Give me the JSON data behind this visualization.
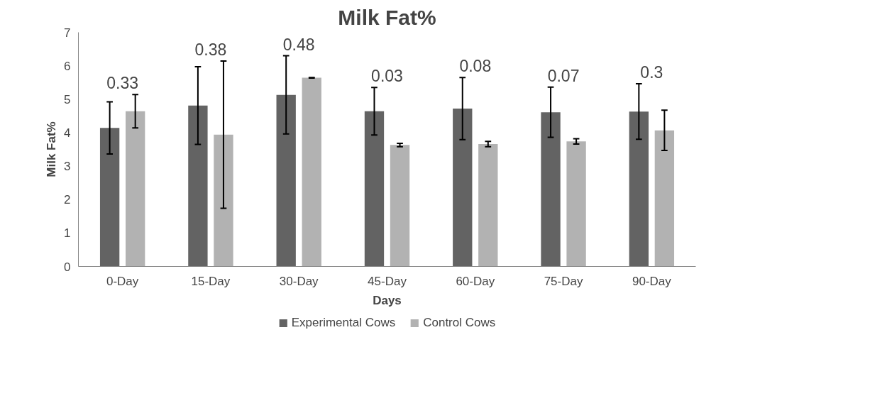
{
  "chart_data": {
    "type": "bar",
    "title": "Milk Fat%",
    "xlabel": "Days",
    "ylabel": "Milk Fat%",
    "categories": [
      "0-Day",
      "15-Day",
      "30-Day",
      "45-Day",
      "60-Day",
      "75-Day",
      "90-Day"
    ],
    "series": [
      {
        "name": "Experimental Cows",
        "color": "#636363",
        "values": [
          4.14,
          4.81,
          5.13,
          4.64,
          4.72,
          4.61,
          4.63
        ],
        "errors": [
          0.78,
          1.16,
          1.17,
          0.71,
          0.93,
          0.75,
          0.83
        ]
      },
      {
        "name": "Control Cows",
        "color": "#b2b2b2",
        "values": [
          4.64,
          3.94,
          5.64,
          3.63,
          3.66,
          3.74,
          4.07
        ],
        "errors": [
          0.5,
          2.2,
          0.01,
          0.05,
          0.08,
          0.08,
          0.6
        ]
      }
    ],
    "ylim": [
      0,
      7
    ],
    "yticks": [
      0,
      1,
      2,
      3,
      4,
      5,
      6,
      7
    ],
    "grid": false,
    "legend": "bottom",
    "annotations": [
      "0.33",
      "0.38",
      "0.48",
      "0.03",
      "0.08",
      "0.07",
      "0.3"
    ]
  }
}
